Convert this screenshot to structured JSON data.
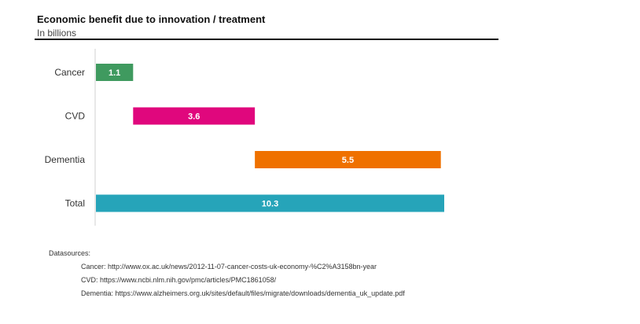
{
  "chart_data": {
    "type": "bar",
    "orientation": "horizontal",
    "stacked_waterfall": true,
    "title": "Economic benefit due to innovation / treatment",
    "subtitle": "In billions",
    "categories": [
      "Cancer",
      "CVD",
      "Dementia",
      "Total"
    ],
    "values": [
      1.1,
      3.6,
      5.5,
      10.3
    ],
    "bars": [
      {
        "category": "Cancer",
        "start": 0,
        "end": 1.1,
        "label": "1.1",
        "color": "#3f9a5f"
      },
      {
        "category": "CVD",
        "start": 1.1,
        "end": 4.7,
        "label": "3.6",
        "color": "#e0077d"
      },
      {
        "category": "Dementia",
        "start": 4.7,
        "end": 10.2,
        "label": "5.5",
        "color": "#ef7100"
      },
      {
        "category": "Total",
        "start": 0,
        "end": 10.3,
        "label": "10.3",
        "color": "#26a4b9"
      }
    ],
    "xlim": [
      0,
      10.3
    ],
    "grid": false,
    "legend": "none"
  },
  "sources": {
    "title": "Datasources:",
    "lines": [
      "Cancer: http://www.ox.ac.uk/news/2012-11-07-cancer-costs-uk-economy-%C2%A3158bn-year",
      "CVD: https://www.ncbi.nlm.nih.gov/pmc/articles/PMC1861058/",
      "Dementia: https://www.alzheimers.org.uk/sites/default/files/migrate/downloads/dementia_uk_update.pdf"
    ]
  },
  "colors": {
    "axis": "#d0d0d0",
    "label_text": "#333333",
    "bar_label_text": "#ffffff"
  }
}
